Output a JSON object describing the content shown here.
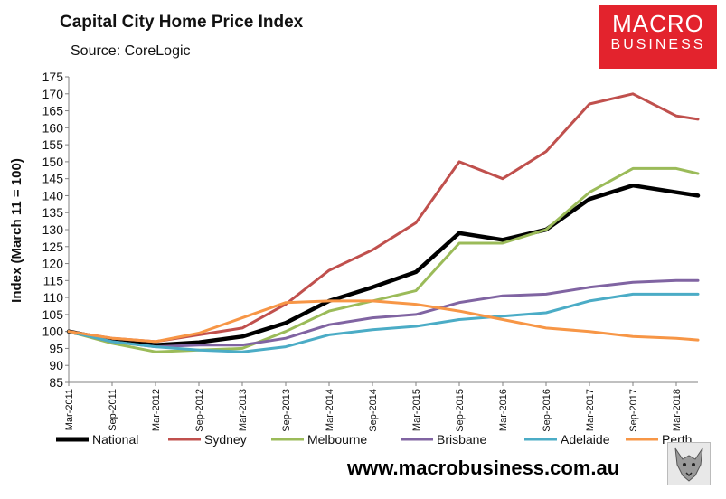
{
  "header": {
    "title": "Capital City Home Price Index",
    "source": "Source: CoreLogic"
  },
  "logo": {
    "line1": "MACRO",
    "line2": "BUSINESS"
  },
  "footer": {
    "url": "www.macrobusiness.com.au"
  },
  "colors": {
    "National": "#000000",
    "Sydney": "#c0504d",
    "Melbourne": "#9bbb59",
    "Brisbane": "#8064a2",
    "Adelaide": "#4bacc6",
    "Perth": "#f79646",
    "logo": "#e3232d"
  },
  "chart_data": {
    "type": "line",
    "title": "Capital City Home Price Index",
    "subtitle": "Source: CoreLogic",
    "ylabel": "Index (March 11 = 100)",
    "xlabel": "",
    "ylim": [
      85,
      175
    ],
    "yticks": [
      85,
      90,
      95,
      100,
      105,
      110,
      115,
      120,
      125,
      130,
      135,
      140,
      145,
      150,
      155,
      160,
      165,
      170,
      175
    ],
    "x_tick_labels": [
      "Mar-2011",
      "Sep-2011",
      "Mar-2012",
      "Sep-2012",
      "Mar-2013",
      "Sep-2013",
      "Mar-2014",
      "Sep-2014",
      "Mar-2015",
      "Sep-2015",
      "Mar-2016",
      "Sep-2016",
      "Mar-2017",
      "Sep-2017",
      "Mar-2018"
    ],
    "x_range": [
      "Mar-2011",
      "Jun-2018"
    ],
    "legend_position": "bottom",
    "grid": false,
    "series": [
      {
        "name": "National",
        "points": [
          [
            "Mar-2011",
            100
          ],
          [
            "Sep-2011",
            97.5
          ],
          [
            "Mar-2012",
            96
          ],
          [
            "Sep-2012",
            96.8
          ],
          [
            "Mar-2013",
            98.5
          ],
          [
            "Sep-2013",
            102.5
          ],
          [
            "Mar-2014",
            109
          ],
          [
            "Sep-2014",
            113
          ],
          [
            "Mar-2015",
            117.5
          ],
          [
            "Sep-2015",
            129
          ],
          [
            "Mar-2016",
            127
          ],
          [
            "Sep-2016",
            130
          ],
          [
            "Mar-2017",
            139
          ],
          [
            "Sep-2017",
            143
          ],
          [
            "Mar-2018",
            141
          ],
          [
            "Jun-2018",
            140
          ]
        ]
      },
      {
        "name": "Sydney",
        "points": [
          [
            "Mar-2011",
            100
          ],
          [
            "Sep-2011",
            98
          ],
          [
            "Mar-2012",
            97
          ],
          [
            "Sep-2012",
            99
          ],
          [
            "Mar-2013",
            101
          ],
          [
            "Sep-2013",
            108
          ],
          [
            "Mar-2014",
            118
          ],
          [
            "Sep-2014",
            124
          ],
          [
            "Mar-2015",
            132
          ],
          [
            "Sep-2015",
            150
          ],
          [
            "Mar-2016",
            145
          ],
          [
            "Sep-2016",
            153
          ],
          [
            "Mar-2017",
            167
          ],
          [
            "Sep-2017",
            170
          ],
          [
            "Mar-2018",
            163.5
          ],
          [
            "Jun-2018",
            162.5
          ]
        ]
      },
      {
        "name": "Melbourne",
        "points": [
          [
            "Mar-2011",
            100
          ],
          [
            "Sep-2011",
            96.5
          ],
          [
            "Mar-2012",
            94
          ],
          [
            "Sep-2012",
            94.5
          ],
          [
            "Mar-2013",
            95
          ],
          [
            "Sep-2013",
            100
          ],
          [
            "Mar-2014",
            106
          ],
          [
            "Sep-2014",
            109
          ],
          [
            "Mar-2015",
            112
          ],
          [
            "Sep-2015",
            126
          ],
          [
            "Mar-2016",
            126
          ],
          [
            "Sep-2016",
            130
          ],
          [
            "Mar-2017",
            141
          ],
          [
            "Sep-2017",
            148
          ],
          [
            "Mar-2018",
            148
          ],
          [
            "Jun-2018",
            146.5
          ]
        ]
      },
      {
        "name": "Brisbane",
        "points": [
          [
            "Mar-2011",
            100
          ],
          [
            "Sep-2011",
            97
          ],
          [
            "Mar-2012",
            95.5
          ],
          [
            "Sep-2012",
            96
          ],
          [
            "Mar-2013",
            96
          ],
          [
            "Sep-2013",
            98
          ],
          [
            "Mar-2014",
            102
          ],
          [
            "Sep-2014",
            104
          ],
          [
            "Mar-2015",
            105
          ],
          [
            "Sep-2015",
            108.5
          ],
          [
            "Mar-2016",
            110.5
          ],
          [
            "Sep-2016",
            111
          ],
          [
            "Mar-2017",
            113
          ],
          [
            "Sep-2017",
            114.5
          ],
          [
            "Mar-2018",
            115
          ],
          [
            "Jun-2018",
            115
          ]
        ]
      },
      {
        "name": "Adelaide",
        "points": [
          [
            "Mar-2011",
            100
          ],
          [
            "Sep-2011",
            97
          ],
          [
            "Mar-2012",
            95.5
          ],
          [
            "Sep-2012",
            94.5
          ],
          [
            "Mar-2013",
            94
          ],
          [
            "Sep-2013",
            95.5
          ],
          [
            "Mar-2014",
            99
          ],
          [
            "Sep-2014",
            100.5
          ],
          [
            "Mar-2015",
            101.5
          ],
          [
            "Sep-2015",
            103.5
          ],
          [
            "Mar-2016",
            104.5
          ],
          [
            "Sep-2016",
            105.5
          ],
          [
            "Mar-2017",
            109
          ],
          [
            "Sep-2017",
            111
          ],
          [
            "Mar-2018",
            111
          ],
          [
            "Jun-2018",
            111
          ]
        ]
      },
      {
        "name": "Perth",
        "points": [
          [
            "Mar-2011",
            100
          ],
          [
            "Sep-2011",
            98
          ],
          [
            "Mar-2012",
            97
          ],
          [
            "Sep-2012",
            99.5
          ],
          [
            "Mar-2013",
            104
          ],
          [
            "Sep-2013",
            108.5
          ],
          [
            "Mar-2014",
            109
          ],
          [
            "Sep-2014",
            109
          ],
          [
            "Mar-2015",
            108
          ],
          [
            "Sep-2015",
            106
          ],
          [
            "Mar-2016",
            103.5
          ],
          [
            "Sep-2016",
            101
          ],
          [
            "Mar-2017",
            100
          ],
          [
            "Sep-2017",
            98.5
          ],
          [
            "Mar-2018",
            98
          ],
          [
            "Jun-2018",
            97.5
          ]
        ]
      }
    ]
  }
}
